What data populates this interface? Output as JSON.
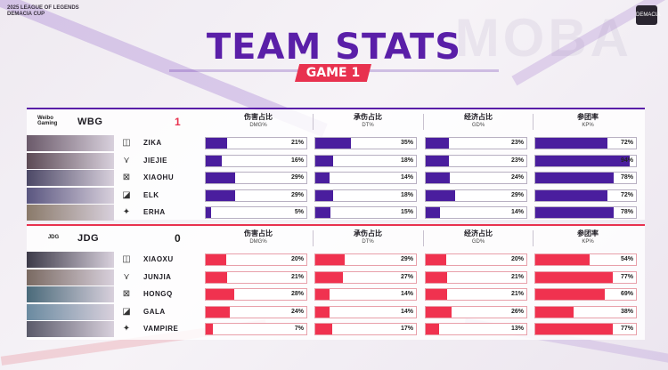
{
  "event": {
    "line1": "2025 LEAGUE OF LEGENDS",
    "line2": "DEMACIA CUP",
    "logo": "DEMACIA"
  },
  "title": "TEAM STATS",
  "game_badge": "GAME 1",
  "bg_word": "MOBA",
  "colors": {
    "purple": "#5a1fa8",
    "bar_purple": "#4a1e9e",
    "red": "#e8324f"
  },
  "teams": [
    {
      "name": "WBG",
      "logo_text": "Weibo Gaming",
      "score": "1",
      "columns": [
        {
          "cn": "伤害占比",
          "en": "DMG%"
        },
        {
          "cn": "承伤占比",
          "en": "DT%"
        },
        {
          "cn": "经济占比",
          "en": "GD%"
        },
        {
          "cn": "参团率",
          "en": "KP%"
        }
      ],
      "players": [
        {
          "name": "ZIKA",
          "role": "top-icon",
          "portrait": "#6b5a6a",
          "dmg": 21,
          "dmg_t": "21%",
          "dt": 35,
          "dt_t": "35%",
          "gd": 23,
          "gd_t": "23%",
          "kp": 72,
          "kp_t": "72%"
        },
        {
          "name": "JIEJIE",
          "role": "jungle-icon",
          "portrait": "#5c4a55",
          "dmg": 16,
          "dmg_t": "16%",
          "dt": 18,
          "dt_t": "18%",
          "gd": 23,
          "gd_t": "23%",
          "kp": 94,
          "kp_t": "94%"
        },
        {
          "name": "XIAOHU",
          "role": "mid-icon",
          "portrait": "#4c4866",
          "dmg": 29,
          "dmg_t": "29%",
          "dt": 14,
          "dt_t": "14%",
          "gd": 24,
          "gd_t": "24%",
          "kp": 78,
          "kp_t": "78%"
        },
        {
          "name": "ELK",
          "role": "bot-icon",
          "portrait": "#5a5680",
          "dmg": 29,
          "dmg_t": "29%",
          "dt": 18,
          "dt_t": "18%",
          "gd": 29,
          "gd_t": "29%",
          "kp": 72,
          "kp_t": "72%"
        },
        {
          "name": "ERHA",
          "role": "support-icon",
          "portrait": "#8a7a6a",
          "dmg": 5,
          "dmg_t": "5%",
          "dt": 15,
          "dt_t": "15%",
          "gd": 14,
          "gd_t": "14%",
          "kp": 78,
          "kp_t": "78%"
        }
      ]
    },
    {
      "name": "JDG",
      "logo_text": "JDG",
      "score": "0",
      "columns": [
        {
          "cn": "伤害占比",
          "en": "DMG%"
        },
        {
          "cn": "承伤占比",
          "en": "DT%"
        },
        {
          "cn": "经济占比",
          "en": "GD%"
        },
        {
          "cn": "参团率",
          "en": "KP%"
        }
      ],
      "players": [
        {
          "name": "XIAOXU",
          "role": "top-icon",
          "portrait": "#3c3a48",
          "dmg": 20,
          "dmg_t": "20%",
          "dt": 29,
          "dt_t": "29%",
          "gd": 20,
          "gd_t": "20%",
          "kp": 54,
          "kp_t": "54%"
        },
        {
          "name": "JUNJIA",
          "role": "jungle-icon",
          "portrait": "#7a6a62",
          "dmg": 21,
          "dmg_t": "21%",
          "dt": 27,
          "dt_t": "27%",
          "gd": 21,
          "gd_t": "21%",
          "kp": 77,
          "kp_t": "77%"
        },
        {
          "name": "HONGQ",
          "role": "mid-icon",
          "portrait": "#4a6a7a",
          "dmg": 28,
          "dmg_t": "28%",
          "dt": 14,
          "dt_t": "14%",
          "gd": 21,
          "gd_t": "21%",
          "kp": 69,
          "kp_t": "69%"
        },
        {
          "name": "GALA",
          "role": "bot-icon",
          "portrait": "#6a8aa0",
          "dmg": 24,
          "dmg_t": "24%",
          "dt": 14,
          "dt_t": "14%",
          "gd": 26,
          "gd_t": "26%",
          "kp": 38,
          "kp_t": "38%"
        },
        {
          "name": "VAMPIRE",
          "role": "support-icon",
          "portrait": "#5a5a6a",
          "dmg": 7,
          "dmg_t": "7%",
          "dt": 17,
          "dt_t": "17%",
          "gd": 13,
          "gd_t": "13%",
          "kp": 77,
          "kp_t": "77%"
        }
      ]
    }
  ]
}
